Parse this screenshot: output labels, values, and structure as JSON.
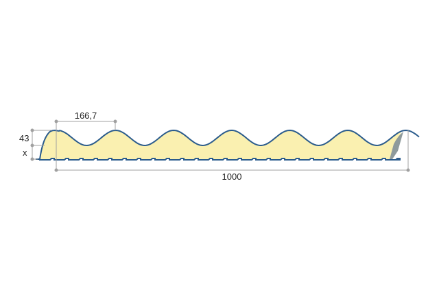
{
  "diagram": {
    "pitch_label": "166,7",
    "height_label": "43",
    "thickness_label": "x",
    "width_label": "1000",
    "colors": {
      "foam": "#faf0b0",
      "steel": "#2a5b8c",
      "edge": "#8e9a9c",
      "dimension": "#a0a0a0"
    }
  }
}
